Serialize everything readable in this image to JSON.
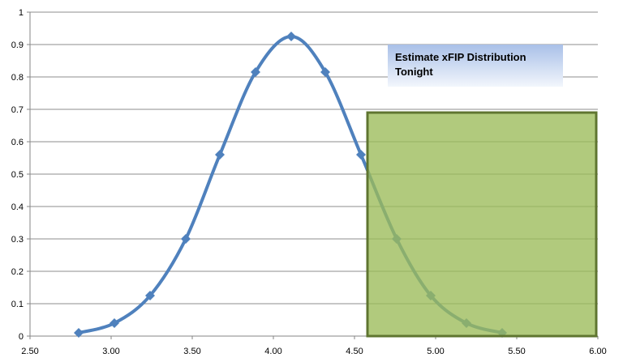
{
  "chart_data": {
    "type": "line",
    "title": "",
    "xlabel": "",
    "ylabel": "",
    "xlim": [
      2.5,
      6.0
    ],
    "ylim": [
      0,
      1
    ],
    "x_ticks": [
      "2.50",
      "3.00",
      "3.50",
      "4.00",
      "4.50",
      "5.00",
      "5.50",
      "6.00"
    ],
    "y_ticks": [
      "0",
      "0.1",
      "0.2",
      "0.3",
      "0.4",
      "0.5",
      "0.6",
      "0.7",
      "0.8",
      "0.9",
      "1"
    ],
    "grid": "horizontal",
    "legend": "none",
    "smooth": true,
    "marker": "diamond",
    "line_color": "#4F81BD",
    "series": [
      {
        "x": [
          2.8,
          3.02,
          3.24,
          3.46,
          3.67,
          3.89,
          4.11,
          4.32,
          4.54,
          4.76,
          4.97,
          5.19,
          5.41
        ],
        "y": [
          0.01,
          0.04,
          0.125,
          0.3,
          0.56,
          0.815,
          0.925,
          0.815,
          0.56,
          0.3,
          0.125,
          0.04,
          0.01
        ]
      }
    ],
    "shaded_region": {
      "x": [
        4.58,
        6.0
      ],
      "y": [
        0,
        0.69
      ],
      "fill": "#9BBB59",
      "opacity": 0.78,
      "stroke": "#5F7530"
    },
    "annotation": {
      "lines": [
        "Estimate xFIP Distribution",
        "Tonight"
      ]
    }
  }
}
